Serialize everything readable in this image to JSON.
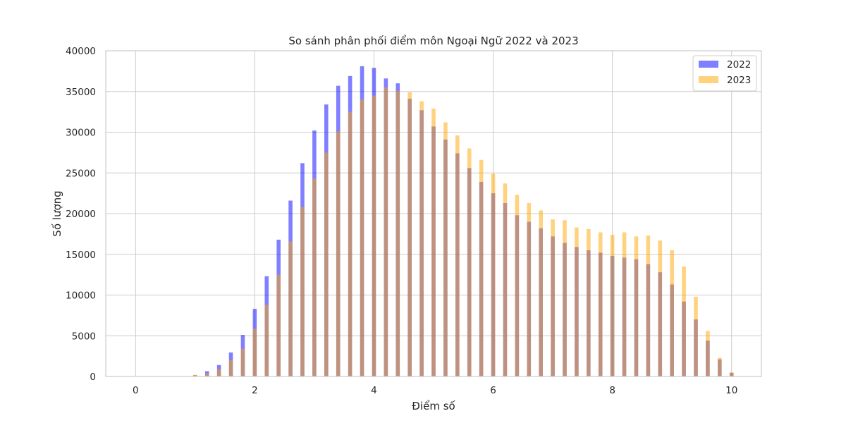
{
  "chart_data": {
    "type": "bar",
    "title": "So sánh phân phối điểm môn Ngoại Ngữ 2022 và 2023",
    "xlabel": "Điểm số",
    "ylabel": "Số lượng",
    "xlim": [
      -0.5,
      10.5
    ],
    "ylim": [
      0,
      40000
    ],
    "xticks": [
      0,
      2,
      4,
      6,
      8,
      10
    ],
    "yticks": [
      0,
      5000,
      10000,
      15000,
      20000,
      25000,
      30000,
      35000,
      40000
    ],
    "grid": true,
    "legend_position": "top-right",
    "bar_width": 0.066,
    "x": [
      0.0,
      0.2,
      0.4,
      0.6,
      0.8,
      1.0,
      1.2,
      1.4,
      1.6,
      1.8,
      2.0,
      2.2,
      2.4,
      2.6,
      2.8,
      3.0,
      3.2,
      3.4,
      3.6,
      3.8,
      4.0,
      4.2,
      4.4,
      4.6,
      4.8,
      5.0,
      5.2,
      5.4,
      5.6,
      5.8,
      6.0,
      6.2,
      6.4,
      6.6,
      6.8,
      7.0,
      7.2,
      7.4,
      7.6,
      7.8,
      8.0,
      8.2,
      8.4,
      8.6,
      8.8,
      9.0,
      9.2,
      9.4,
      9.6,
      9.8,
      10.0
    ],
    "series": [
      {
        "name": "2022",
        "color": "#0000ff",
        "opacity": 0.5,
        "values": [
          0,
          0,
          0,
          0,
          20,
          150,
          650,
          1400,
          2950,
          5100,
          8300,
          12300,
          16800,
          21600,
          26200,
          30200,
          33400,
          35700,
          36900,
          38100,
          37900,
          36600,
          36000,
          34100,
          32700,
          30700,
          29100,
          27400,
          25600,
          23900,
          22500,
          21300,
          19800,
          19000,
          18200,
          17200,
          16400,
          15900,
          15500,
          15200,
          14800,
          14600,
          14400,
          13800,
          12800,
          11300,
          9200,
          7000,
          4400,
          2100,
          450
        ]
      },
      {
        "name": "2023",
        "color": "#ffa500",
        "opacity": 0.5,
        "values": [
          0,
          0,
          0,
          0,
          20,
          200,
          350,
          900,
          2000,
          3400,
          5900,
          8800,
          12500,
          16600,
          20800,
          24300,
          27500,
          30100,
          32500,
          34000,
          34500,
          35500,
          35100,
          34900,
          33800,
          32900,
          31200,
          29600,
          28000,
          26600,
          24900,
          23700,
          22300,
          21300,
          20400,
          19300,
          19200,
          18300,
          18100,
          17700,
          17400,
          17700,
          17200,
          17300,
          16700,
          15500,
          13500,
          9800,
          5600,
          2300,
          500
        ]
      }
    ]
  }
}
